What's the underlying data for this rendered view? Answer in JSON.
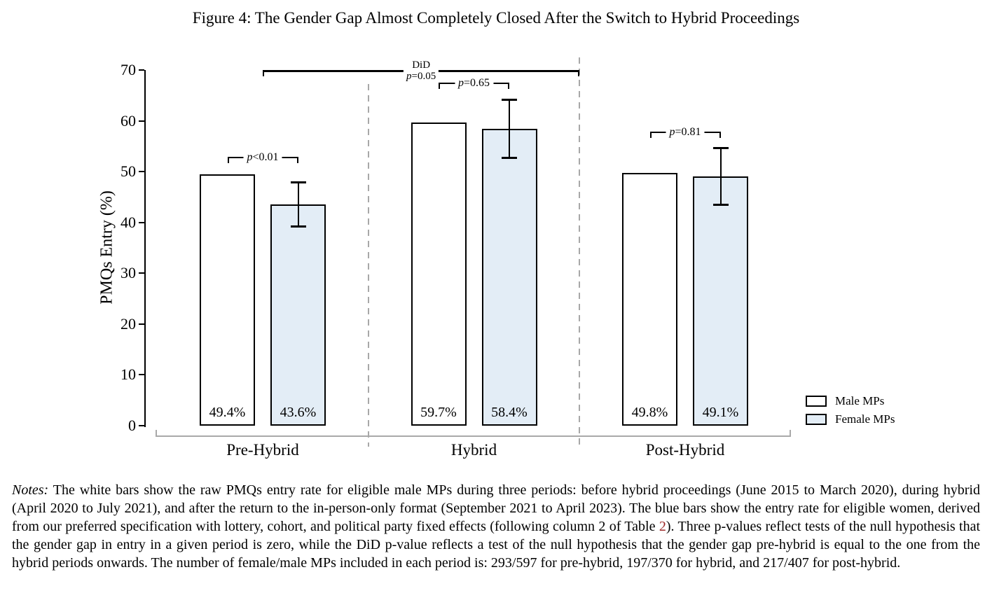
{
  "figure": {
    "title": "Figure 4: The Gender Gap Almost Completely Closed After the Switch to Hybrid Proceedings"
  },
  "colors": {
    "male_fill": "#ffffff",
    "female_fill": "#e3edf6",
    "bar_border": "#000000",
    "axis_gray": "#a9a9a9",
    "link_red": "#9e2a2a"
  },
  "chart_data": {
    "type": "bar",
    "title": "Figure 4: The Gender Gap Almost Completely Closed After the Switch to Hybrid Proceedings",
    "ylabel": "PMQs Entry (%)",
    "xlabel": "",
    "ylim": [
      0,
      70
    ],
    "yticks": [
      0,
      10,
      20,
      30,
      40,
      50,
      60,
      70
    ],
    "grid": false,
    "legend_position": "bottom-right",
    "categories": [
      "Pre-Hybrid",
      "Hybrid",
      "Post-Hybrid"
    ],
    "series": [
      {
        "name": "Male MPs",
        "fill": "#ffffff",
        "values": [
          49.4,
          59.7,
          49.8
        ],
        "bar_labels": [
          "49.4%",
          "59.7%",
          "49.8%"
        ]
      },
      {
        "name": "Female MPs",
        "fill": "#e3edf6",
        "values": [
          43.6,
          58.4,
          49.1
        ],
        "bar_labels": [
          "43.6%",
          "58.4%",
          "49.1%"
        ],
        "ci_low": [
          39.2,
          52.6,
          43.4
        ],
        "ci_high": [
          47.9,
          64.2,
          54.7
        ]
      }
    ],
    "p_brackets": [
      {
        "group": 0,
        "text": "p<0.01",
        "height": 52.9
      },
      {
        "group": 1,
        "text": "p=0.65",
        "height": 67.5
      },
      {
        "group": 2,
        "text": "p=0.81",
        "height": 57.9
      }
    ],
    "did_bracket": {
      "label": "DiD",
      "text": "p=0.05",
      "height": 70
    }
  },
  "notes": {
    "label": "Notes:",
    "body_before_link": " The white bars show the raw PMQs entry rate for eligible male MPs during three periods: before hybrid proceedings (June 2015 to March 2020), during hybrid (April 2020 to July 2021), and after the return to the in-person-only format (September 2021 to April 2023). The blue bars show the entry rate for eligible women, derived from our preferred specification with lottery, cohort, and political party fixed effects (following column 2 of Table ",
    "link_text": "2",
    "body_after_link": "). Three p-values reflect tests of the null hypothesis that the gender gap in entry in a given period is zero, while the DiD p-value reflects a test of the null hypothesis that the gender gap pre-hybrid is equal to the one from the hybrid periods onwards. The number of female/male MPs included in each period is: 293/597 for pre-hybrid, 197/370 for hybrid, and 217/407 for post-hybrid."
  }
}
